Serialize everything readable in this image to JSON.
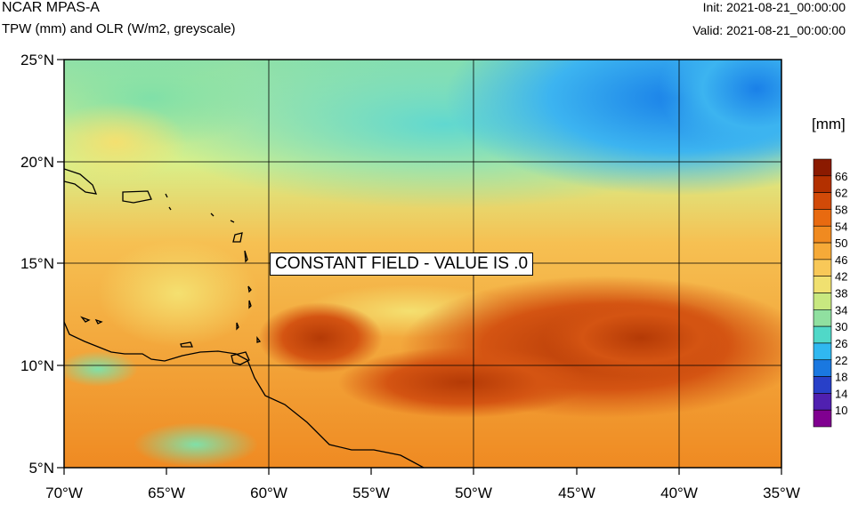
{
  "header": {
    "title": "NCAR MPAS-A",
    "subtitle": "TPW (mm) and OLR (W/m2, greyscale)",
    "init": "Init: 2021-08-21_00:00:00",
    "valid": "Valid: 2021-08-21_00:00:00"
  },
  "map": {
    "lon_labels": [
      "70°W",
      "65°W",
      "60°W",
      "55°W",
      "50°W",
      "45°W",
      "40°W",
      "35°W"
    ],
    "lat_labels": [
      "25°N",
      "20°N",
      "15°N",
      "10°N",
      "5°N"
    ],
    "note": "CONSTANT FIELD - VALUE IS .0"
  },
  "colorbar": {
    "units": "[mm]",
    "levels": [
      "66",
      "62",
      "58",
      "54",
      "50",
      "46",
      "42",
      "38",
      "34",
      "30",
      "26",
      "22",
      "18",
      "14",
      "10"
    ],
    "colors": [
      "#8b1a00",
      "#b33000",
      "#d24a08",
      "#e86a10",
      "#f08a20",
      "#f6aa38",
      "#f8c858",
      "#f0e070",
      "#c8e880",
      "#90e0a0",
      "#50d8c8",
      "#30b8f0",
      "#1a78e0",
      "#2840c8",
      "#5020b0",
      "#800090"
    ]
  }
}
